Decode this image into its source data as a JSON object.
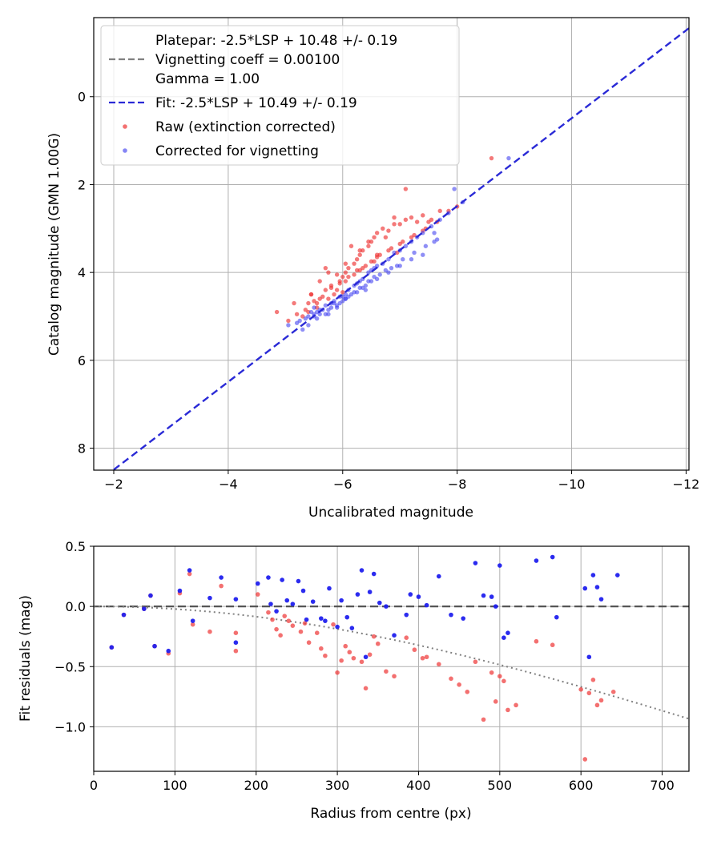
{
  "chart_data": [
    {
      "type": "scatter",
      "xlabel": "Uncalibrated magnitude",
      "ylabel": "Catalog magnitude (GMN 1.00G)",
      "xlim": [
        -1.65,
        -12.05
      ],
      "ylim": [
        8.5,
        -1.8
      ],
      "xticks": [
        -2,
        -4,
        -6,
        -8,
        -10,
        -12
      ],
      "xtick_labels": [
        "−2",
        "−4",
        "−6",
        "−8",
        "−10",
        "−12"
      ],
      "yticks": [
        0,
        2,
        4,
        6,
        8
      ],
      "ytick_labels": [
        "0",
        "2",
        "4",
        "6",
        "8"
      ],
      "grid": true,
      "legend_position": "top-left",
      "legend": {
        "platepar_label": "Platepar: -2.5*LSP + 10.48 +/- 0.19\nVignetting coeff = 0.00100\nGamma = 1.00",
        "fit_label": "Fit: -2.5*LSP + 10.49 +/- 0.19",
        "raw_label": "Raw (extinction corrected)",
        "corrected_label": "Corrected for vignetting"
      },
      "fit_line": {
        "slope": 1.0,
        "intercept": 10.49,
        "x_range": [
          -2.0,
          -12.05
        ],
        "color": "#2a2ad6"
      },
      "series": [
        {
          "name": "Raw (extinction corrected)",
          "color": "#ee3333",
          "x": [
            -5.4,
            -5.45,
            -5.55,
            -5.6,
            -5.7,
            -5.8,
            -5.85,
            -5.95,
            -6.0,
            -6.05,
            -6.1,
            -6.2,
            -6.25,
            -6.3,
            -6.35,
            -6.45,
            -6.5,
            -6.55,
            -6.6,
            -6.7,
            -6.8,
            -6.9,
            -7.0,
            -7.1,
            -7.2,
            -7.3,
            -7.4,
            -7.55,
            -7.7,
            -7.85,
            -5.3,
            -5.4,
            -5.55,
            -5.75,
            -5.9,
            -6.05,
            -6.2,
            -6.35,
            -6.5,
            -6.65,
            -6.85,
            -7.05,
            -7.25,
            -7.45,
            -7.65,
            -5.05,
            -5.2,
            -5.35,
            -5.5,
            -5.65,
            -5.8,
            -5.95,
            -6.1,
            -6.25,
            -6.4,
            -6.6,
            -6.8,
            -7.0,
            -7.2,
            -7.4,
            -5.6,
            -5.75,
            -5.9,
            -6.05,
            -6.15,
            -6.3,
            -6.45,
            -6.55,
            -6.75,
            -6.95,
            -4.85,
            -5.15,
            -5.45,
            -5.7,
            -6.0,
            -6.3,
            -6.6,
            -6.9,
            -7.5,
            -8.0,
            -8.6,
            -7.1
          ],
          "y": [
            4.7,
            4.5,
            4.8,
            4.6,
            4.4,
            4.3,
            4.5,
            4.2,
            4.1,
            4.0,
            3.9,
            3.8,
            3.7,
            3.6,
            3.5,
            3.4,
            3.3,
            3.2,
            3.1,
            3.0,
            3.05,
            2.9,
            2.9,
            2.8,
            2.75,
            2.85,
            2.7,
            2.8,
            2.6,
            2.6,
            5.0,
            4.9,
            4.7,
            4.6,
            4.4,
            4.2,
            4.05,
            3.9,
            3.75,
            3.6,
            3.45,
            3.3,
            3.15,
            3.0,
            2.85,
            5.1,
            4.95,
            4.85,
            4.65,
            4.55,
            4.35,
            4.25,
            4.1,
            3.95,
            3.85,
            3.65,
            3.5,
            3.35,
            3.2,
            3.05,
            4.2,
            4.0,
            4.05,
            3.8,
            3.4,
            3.95,
            3.3,
            3.75,
            3.2,
            3.55,
            4.9,
            4.7,
            4.5,
            3.9,
            4.45,
            3.5,
            3.6,
            2.75,
            2.85,
            2.5,
            1.4,
            2.1
          ]
        },
        {
          "name": "Corrected for vignetting",
          "color": "#3333ee",
          "x": [
            -5.4,
            -5.45,
            -5.55,
            -5.6,
            -5.7,
            -5.8,
            -5.85,
            -5.95,
            -6.0,
            -6.05,
            -6.1,
            -6.2,
            -6.25,
            -6.3,
            -6.35,
            -6.45,
            -6.5,
            -6.55,
            -6.6,
            -6.7,
            -6.8,
            -6.9,
            -7.0,
            -7.1,
            -7.2,
            -7.3,
            -7.4,
            -7.55,
            -7.7,
            -7.85,
            -5.3,
            -5.4,
            -5.55,
            -5.75,
            -5.9,
            -6.05,
            -6.2,
            -6.35,
            -6.5,
            -6.65,
            -6.85,
            -7.05,
            -7.25,
            -7.45,
            -7.65,
            -5.05,
            -5.2,
            -5.35,
            -5.5,
            -5.65,
            -5.8,
            -5.95,
            -6.1,
            -6.25,
            -6.4,
            -6.6,
            -6.8,
            -7.0,
            -7.2,
            -7.4,
            -5.6,
            -5.75,
            -5.9,
            -6.05,
            -6.15,
            -6.3,
            -6.45,
            -6.55,
            -6.75,
            -6.95,
            -5.25,
            -5.5,
            -5.7,
            -6.0,
            -6.4,
            -7.6,
            -7.95,
            -8.1,
            -8.9,
            -7.6,
            -5.5,
            -5.85
          ],
          "y": [
            5.0,
            4.9,
            4.9,
            4.85,
            4.75,
            4.7,
            4.65,
            4.55,
            4.55,
            4.5,
            4.4,
            4.3,
            4.25,
            4.2,
            4.15,
            4.0,
            3.95,
            3.9,
            3.85,
            3.8,
            3.7,
            3.55,
            3.5,
            3.4,
            3.3,
            3.2,
            3.1,
            2.95,
            2.8,
            2.65,
            5.3,
            5.2,
            5.05,
            4.95,
            4.8,
            4.6,
            4.45,
            4.35,
            4.2,
            4.05,
            3.9,
            3.7,
            3.55,
            3.4,
            3.25,
            5.2,
            5.15,
            5.05,
            4.95,
            4.85,
            4.8,
            4.7,
            4.55,
            4.45,
            4.3,
            4.15,
            4.0,
            3.85,
            3.7,
            3.6,
            4.95,
            4.85,
            4.75,
            4.6,
            4.5,
            4.35,
            4.2,
            4.1,
            3.95,
            3.85,
            5.1,
            5.0,
            4.95,
            4.65,
            4.4,
            3.1,
            2.1,
            2.4,
            1.4,
            3.3,
            4.8,
            4.7
          ]
        }
      ]
    },
    {
      "type": "scatter",
      "xlabel": "Radius from centre (px)",
      "ylabel": "Fit residuals (mag)",
      "xlim": [
        0,
        733
      ],
      "ylim": [
        -1.37,
        0.5
      ],
      "xticks": [
        0,
        100,
        200,
        300,
        400,
        500,
        600,
        700
      ],
      "xtick_labels": [
        "0",
        "100",
        "200",
        "300",
        "400",
        "500",
        "600",
        "700"
      ],
      "yticks": [
        0.5,
        0.0,
        -0.5,
        -1.0
      ],
      "ytick_labels": [
        "0.5",
        "0.0",
        "−0.5",
        "−1.0"
      ],
      "grid": true,
      "zero_line": 0.0,
      "vignetting_curve": {
        "coefficient": 0.001,
        "color": "#808080",
        "style": "dotted"
      },
      "series": [
        {
          "name": "Raw (extinction corrected)",
          "color": "#ee3333",
          "x": [
            22,
            37,
            62,
            70,
            75,
            92,
            106,
            118,
            122,
            143,
            157,
            175,
            175,
            202,
            215,
            220,
            225,
            230,
            235,
            240,
            245,
            255,
            260,
            265,
            275,
            280,
            285,
            295,
            300,
            305,
            310,
            315,
            320,
            330,
            335,
            340,
            345,
            350,
            360,
            370,
            385,
            395,
            405,
            410,
            425,
            440,
            450,
            460,
            470,
            480,
            490,
            495,
            500,
            505,
            510,
            520,
            545,
            565,
            600,
            605,
            610,
            615,
            620,
            625,
            640
          ],
          "x_note": "radius in px",
          "y": [
            -0.34,
            -0.07,
            -0.02,
            0.09,
            -0.33,
            -0.39,
            0.11,
            0.27,
            -0.15,
            -0.21,
            0.17,
            -0.37,
            -0.22,
            0.1,
            -0.05,
            -0.11,
            -0.19,
            -0.24,
            -0.08,
            -0.12,
            -0.16,
            -0.21,
            -0.14,
            -0.3,
            -0.22,
            -0.35,
            -0.41,
            -0.15,
            -0.55,
            -0.45,
            -0.33,
            -0.38,
            -0.43,
            -0.46,
            -0.68,
            -0.4,
            -0.25,
            -0.31,
            -0.54,
            -0.58,
            -0.26,
            -0.36,
            -0.43,
            -0.42,
            -0.48,
            -0.6,
            -0.65,
            -0.71,
            -0.46,
            -0.94,
            -0.55,
            -0.79,
            -0.58,
            -0.62,
            -0.86,
            -0.82,
            -0.29,
            -0.32,
            -0.69,
            -1.27,
            -0.72,
            -0.61,
            -0.82,
            -0.78,
            -0.71
          ]
        },
        {
          "name": "Corrected for vignetting",
          "color": "#2020ee",
          "x": [
            22,
            37,
            62,
            70,
            75,
            92,
            106,
            118,
            122,
            143,
            157,
            175,
            175,
            202,
            215,
            218,
            225,
            232,
            238,
            245,
            252,
            258,
            262,
            270,
            280,
            285,
            290,
            300,
            305,
            312,
            318,
            325,
            330,
            335,
            340,
            345,
            352,
            360,
            370,
            385,
            390,
            400,
            410,
            425,
            440,
            455,
            470,
            480,
            490,
            495,
            500,
            505,
            510,
            545,
            565,
            570,
            605,
            610,
            615,
            620,
            625,
            645
          ],
          "y": [
            -0.34,
            -0.07,
            -0.02,
            0.09,
            -0.33,
            -0.37,
            0.13,
            0.3,
            -0.12,
            0.07,
            0.24,
            0.06,
            -0.3,
            0.19,
            0.24,
            0.02,
            -0.04,
            0.22,
            0.05,
            0.02,
            0.21,
            0.13,
            -0.11,
            0.04,
            -0.1,
            -0.12,
            0.15,
            -0.17,
            0.05,
            -0.09,
            -0.18,
            0.1,
            0.3,
            -0.42,
            0.12,
            0.27,
            0.03,
            0.0,
            -0.24,
            -0.07,
            0.1,
            0.08,
            0.01,
            0.25,
            -0.07,
            -0.1,
            0.36,
            0.09,
            0.08,
            0.0,
            0.34,
            -0.26,
            -0.22,
            0.38,
            0.41,
            -0.09,
            0.15,
            -0.42,
            0.26,
            0.16,
            0.06,
            0.26
          ]
        }
      ]
    }
  ]
}
